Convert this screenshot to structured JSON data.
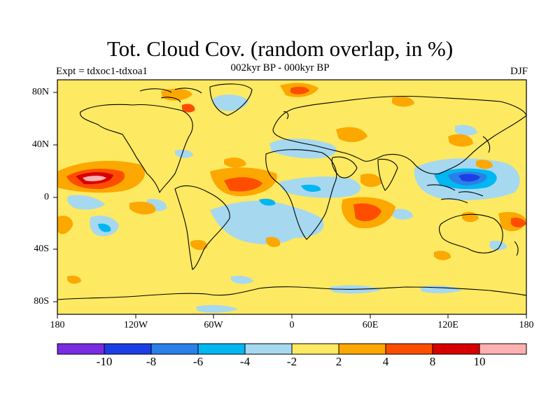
{
  "title": "Tot. Cloud Cov. (random overlap, in %)",
  "subtitle": "002kyr BP - 000kyr BP",
  "left_label": "Expt = tdxoc1-tdxoa1",
  "right_label": "DJF",
  "lat_ticks": [
    "80N",
    "40N",
    "0",
    "40S",
    "80S"
  ],
  "lon_ticks": [
    "180",
    "120W",
    "60W",
    "0",
    "60E",
    "120E",
    "180"
  ],
  "colorbar": {
    "labels": [
      "-10",
      "-8",
      "-6",
      "-4",
      "-2",
      "2",
      "4",
      "8",
      "10"
    ],
    "colors": [
      "#7b2be2",
      "#1c3ee6",
      "#2b7fe8",
      "#00b7f2",
      "#a6d8f0",
      "#fde962",
      "#fca800",
      "#ff4d00",
      "#d60000",
      "#ffb0b0"
    ]
  },
  "map": {
    "background_color": "#fde962",
    "lon_range": [
      -180,
      180
    ],
    "lat_range": [
      -90,
      90
    ]
  }
}
